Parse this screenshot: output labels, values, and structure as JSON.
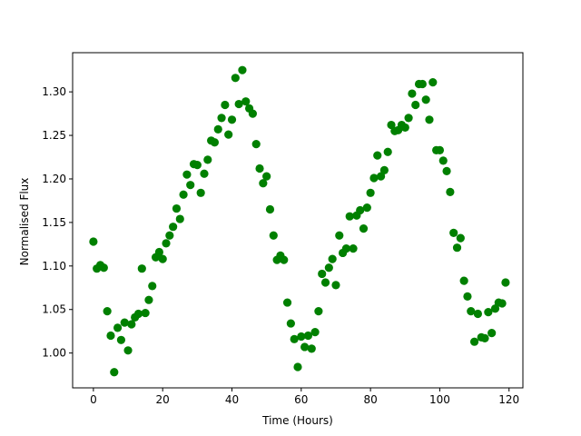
{
  "chart_data": {
    "type": "scatter",
    "xlabel": "Time (Hours)",
    "ylabel": "Normalised Flux",
    "xlim": [
      -6,
      124
    ],
    "ylim": [
      0.96,
      1.345
    ],
    "xticks": [
      0,
      20,
      40,
      60,
      80,
      100,
      120
    ],
    "yticks": [
      1.0,
      1.05,
      1.1,
      1.15,
      1.2,
      1.25,
      1.3
    ],
    "xtick_labels": [
      "0",
      "20",
      "40",
      "60",
      "80",
      "100",
      "120"
    ],
    "ytick_labels": [
      "1.00",
      "1.05",
      "1.10",
      "1.15",
      "1.20",
      "1.25",
      "1.30"
    ],
    "grid": false,
    "marker_color": "#008000",
    "series": [
      {
        "x": [
          0,
          1,
          2,
          3,
          4,
          5,
          6,
          7,
          8,
          9,
          10,
          11,
          12,
          13,
          14,
          15,
          16,
          17,
          18,
          19,
          20,
          21,
          22,
          23,
          24,
          25,
          26,
          27,
          28,
          29,
          30,
          31,
          32,
          33,
          34,
          35,
          36,
          37,
          38,
          39,
          40,
          41,
          42,
          43,
          44,
          45,
          46,
          47,
          48,
          49,
          50,
          51,
          52,
          53,
          54,
          55,
          56,
          57,
          58,
          59,
          60,
          61,
          62,
          63,
          64,
          65,
          66,
          67,
          68,
          69,
          70,
          71,
          72,
          73,
          74,
          75,
          76,
          77,
          78,
          79,
          80,
          81,
          82,
          83,
          84,
          85,
          86,
          87,
          88,
          89,
          90,
          91,
          92,
          93,
          94,
          95,
          96,
          97,
          98,
          99,
          100,
          101,
          102,
          103,
          104,
          105,
          106,
          107,
          108,
          109,
          110,
          111,
          112,
          113,
          114,
          115,
          116,
          117,
          118,
          119
        ],
        "y": [
          1.128,
          1.097,
          1.101,
          1.098,
          1.048,
          1.02,
          0.978,
          1.029,
          1.015,
          1.035,
          1.003,
          1.033,
          1.041,
          1.045,
          1.097,
          1.046,
          1.061,
          1.077,
          1.11,
          1.116,
          1.108,
          1.126,
          1.135,
          1.145,
          1.166,
          1.154,
          1.182,
          1.205,
          1.193,
          1.217,
          1.216,
          1.184,
          1.206,
          1.222,
          1.244,
          1.242,
          1.257,
          1.27,
          1.285,
          1.251,
          1.268,
          1.316,
          1.286,
          1.325,
          1.289,
          1.281,
          1.275,
          1.24,
          1.212,
          1.195,
          1.203,
          1.165,
          1.135,
          1.107,
          1.112,
          1.107,
          1.058,
          1.034,
          1.016,
          0.984,
          1.019,
          1.007,
          1.02,
          1.005,
          1.024,
          1.048,
          1.091,
          1.081,
          1.098,
          1.108,
          1.078,
          1.135,
          1.115,
          1.12,
          1.157,
          1.12,
          1.158,
          1.164,
          1.143,
          1.167,
          1.184,
          1.201,
          1.227,
          1.203,
          1.21,
          1.231,
          1.262,
          1.255,
          1.256,
          1.262,
          1.259,
          1.27,
          1.298,
          1.285,
          1.309,
          1.309,
          1.291,
          1.268,
          1.311,
          1.233,
          1.233,
          1.221,
          1.209,
          1.185,
          1.138,
          1.121,
          1.132,
          1.083,
          1.065,
          1.048,
          1.013,
          1.045,
          1.018,
          1.017,
          1.047,
          1.023,
          1.051,
          1.058,
          1.057,
          1.081
        ]
      }
    ]
  }
}
